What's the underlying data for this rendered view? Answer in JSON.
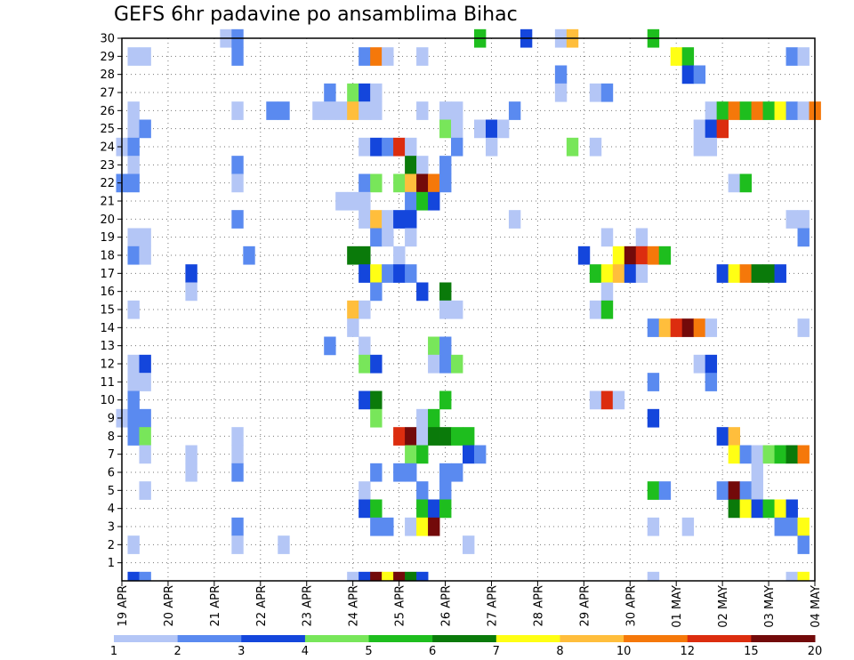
{
  "chart_data": {
    "type": "heatmap",
    "title": "GEFS 6hr padavine po ansamblima Bihac",
    "y_ticks": [
      "1",
      "2",
      "3",
      "4",
      "5",
      "6",
      "7",
      "8",
      "9",
      "10",
      "11",
      "12",
      "13",
      "14",
      "15",
      "16",
      "17",
      "18",
      "19",
      "20",
      "21",
      "22",
      "23",
      "24",
      "25",
      "26",
      "27",
      "28",
      "29",
      "30"
    ],
    "x_ticks": [
      "19 APR",
      "20 APR",
      "21 APR",
      "22 APR",
      "23 APR",
      "24 APR",
      "25 APR",
      "26 APR",
      "27 APR",
      "28 APR",
      "29 APR",
      "30 APR",
      "01 MAY",
      "02 MAY",
      "03 MAY",
      "04 MAY"
    ],
    "time_steps_per_day": 4,
    "n_steps": 61,
    "colorbar_labels": [
      "1",
      "2",
      "3",
      "4",
      "5",
      "6",
      "7",
      "8",
      "10",
      "12",
      "15",
      "20"
    ],
    "class_colors": [
      "#b4c6f6",
      "#5a8af0",
      "#1446dc",
      "#78e65a",
      "#1ebe1e",
      "#0a7a0a",
      "#ffff14",
      "#ffbe3c",
      "#f5780a",
      "#dc2d0f",
      "#730a0a"
    ],
    "grid": "dotted",
    "cells": [
      [
        30,
        9,
        0
      ],
      [
        30,
        10,
        1
      ],
      [
        30,
        31,
        4
      ],
      [
        30,
        35,
        2
      ],
      [
        30,
        38,
        0
      ],
      [
        30,
        39,
        7
      ],
      [
        30,
        46,
        4
      ],
      [
        29,
        1,
        0
      ],
      [
        29,
        2,
        0
      ],
      [
        29,
        10,
        1
      ],
      [
        29,
        21,
        1
      ],
      [
        29,
        22,
        8
      ],
      [
        29,
        23,
        0
      ],
      [
        29,
        26,
        0
      ],
      [
        29,
        48,
        6
      ],
      [
        29,
        49,
        4
      ],
      [
        29,
        58,
        1
      ],
      [
        29,
        59,
        0
      ],
      [
        28,
        38,
        1
      ],
      [
        28,
        49,
        2
      ],
      [
        28,
        50,
        1
      ],
      [
        27,
        18,
        1
      ],
      [
        27,
        20,
        3
      ],
      [
        27,
        21,
        2
      ],
      [
        27,
        22,
        0
      ],
      [
        27,
        38,
        0
      ],
      [
        27,
        41,
        0
      ],
      [
        27,
        42,
        1
      ],
      [
        26,
        1,
        0
      ],
      [
        26,
        10,
        0
      ],
      [
        26,
        13,
        1
      ],
      [
        26,
        14,
        1
      ],
      [
        26,
        17,
        0
      ],
      [
        26,
        18,
        0
      ],
      [
        26,
        19,
        0
      ],
      [
        26,
        20,
        7
      ],
      [
        26,
        21,
        0
      ],
      [
        26,
        22,
        0
      ],
      [
        26,
        26,
        0
      ],
      [
        26,
        28,
        0
      ],
      [
        26,
        29,
        0
      ],
      [
        26,
        34,
        1
      ],
      [
        26,
        51,
        0
      ],
      [
        26,
        52,
        4
      ],
      [
        26,
        53,
        8
      ],
      [
        26,
        54,
        4
      ],
      [
        26,
        55,
        8
      ],
      [
        26,
        56,
        4
      ],
      [
        26,
        57,
        6
      ],
      [
        26,
        58,
        1
      ],
      [
        26,
        59,
        0
      ],
      [
        26,
        60,
        8
      ],
      [
        25,
        1,
        0
      ],
      [
        25,
        2,
        1
      ],
      [
        25,
        28,
        3
      ],
      [
        25,
        29,
        0
      ],
      [
        25,
        31,
        0
      ],
      [
        25,
        32,
        2
      ],
      [
        25,
        33,
        0
      ],
      [
        25,
        50,
        0
      ],
      [
        25,
        51,
        2
      ],
      [
        25,
        52,
        9
      ],
      [
        24,
        0,
        0
      ],
      [
        24,
        1,
        1
      ],
      [
        24,
        21,
        0
      ],
      [
        24,
        22,
        2
      ],
      [
        24,
        23,
        1
      ],
      [
        24,
        24,
        9
      ],
      [
        24,
        25,
        0
      ],
      [
        24,
        29,
        1
      ],
      [
        24,
        32,
        0
      ],
      [
        24,
        39,
        3
      ],
      [
        24,
        41,
        0
      ],
      [
        24,
        50,
        0
      ],
      [
        24,
        51,
        0
      ],
      [
        23,
        1,
        0
      ],
      [
        23,
        10,
        1
      ],
      [
        23,
        25,
        5
      ],
      [
        23,
        26,
        0
      ],
      [
        23,
        28,
        1
      ],
      [
        22,
        0,
        1
      ],
      [
        22,
        1,
        1
      ],
      [
        22,
        10,
        0
      ],
      [
        22,
        21,
        1
      ],
      [
        22,
        22,
        3
      ],
      [
        22,
        24,
        3
      ],
      [
        22,
        25,
        7
      ],
      [
        22,
        26,
        10
      ],
      [
        22,
        27,
        8
      ],
      [
        22,
        28,
        1
      ],
      [
        22,
        53,
        0
      ],
      [
        22,
        54,
        4
      ],
      [
        21,
        19,
        0
      ],
      [
        21,
        20,
        0
      ],
      [
        21,
        21,
        0
      ],
      [
        21,
        25,
        1
      ],
      [
        21,
        26,
        4
      ],
      [
        21,
        27,
        2
      ],
      [
        20,
        10,
        1
      ],
      [
        20,
        21,
        0
      ],
      [
        20,
        22,
        7
      ],
      [
        20,
        23,
        0
      ],
      [
        20,
        24,
        2
      ],
      [
        20,
        25,
        2
      ],
      [
        20,
        34,
        0
      ],
      [
        20,
        58,
        0
      ],
      [
        20,
        59,
        0
      ],
      [
        19,
        1,
        0
      ],
      [
        19,
        2,
        0
      ],
      [
        19,
        22,
        1
      ],
      [
        19,
        23,
        0
      ],
      [
        19,
        25,
        0
      ],
      [
        19,
        42,
        0
      ],
      [
        19,
        45,
        0
      ],
      [
        19,
        59,
        1
      ],
      [
        18,
        1,
        1
      ],
      [
        18,
        2,
        0
      ],
      [
        18,
        11,
        1
      ],
      [
        18,
        20,
        5
      ],
      [
        18,
        21,
        5
      ],
      [
        18,
        24,
        0
      ],
      [
        18,
        40,
        2
      ],
      [
        18,
        43,
        6
      ],
      [
        18,
        44,
        10
      ],
      [
        18,
        45,
        9
      ],
      [
        18,
        46,
        8
      ],
      [
        18,
        47,
        4
      ],
      [
        17,
        6,
        2
      ],
      [
        17,
        21,
        2
      ],
      [
        17,
        22,
        6
      ],
      [
        17,
        23,
        1
      ],
      [
        17,
        24,
        2
      ],
      [
        17,
        25,
        1
      ],
      [
        17,
        41,
        4
      ],
      [
        17,
        42,
        6
      ],
      [
        17,
        43,
        7
      ],
      [
        17,
        44,
        2
      ],
      [
        17,
        45,
        0
      ],
      [
        17,
        52,
        2
      ],
      [
        17,
        53,
        6
      ],
      [
        17,
        54,
        8
      ],
      [
        17,
        55,
        5
      ],
      [
        17,
        56,
        5
      ],
      [
        17,
        57,
        2
      ],
      [
        16,
        6,
        0
      ],
      [
        16,
        22,
        1
      ],
      [
        16,
        26,
        2
      ],
      [
        16,
        28,
        5
      ],
      [
        16,
        42,
        0
      ],
      [
        15,
        1,
        0
      ],
      [
        15,
        20,
        7
      ],
      [
        15,
        21,
        0
      ],
      [
        15,
        28,
        0
      ],
      [
        15,
        29,
        0
      ],
      [
        15,
        41,
        0
      ],
      [
        15,
        42,
        4
      ],
      [
        14,
        20,
        0
      ],
      [
        14,
        46,
        1
      ],
      [
        14,
        47,
        7
      ],
      [
        14,
        48,
        9
      ],
      [
        14,
        49,
        10
      ],
      [
        14,
        50,
        8
      ],
      [
        14,
        51,
        0
      ],
      [
        14,
        59,
        0
      ],
      [
        13,
        18,
        1
      ],
      [
        13,
        21,
        0
      ],
      [
        13,
        27,
        3
      ],
      [
        13,
        28,
        1
      ],
      [
        12,
        1,
        0
      ],
      [
        12,
        2,
        2
      ],
      [
        12,
        21,
        3
      ],
      [
        12,
        22,
        2
      ],
      [
        12,
        27,
        0
      ],
      [
        12,
        28,
        1
      ],
      [
        12,
        29,
        3
      ],
      [
        12,
        50,
        0
      ],
      [
        12,
        51,
        2
      ],
      [
        11,
        1,
        0
      ],
      [
        11,
        2,
        0
      ],
      [
        11,
        46,
        1
      ],
      [
        11,
        51,
        1
      ],
      [
        10,
        1,
        1
      ],
      [
        10,
        21,
        2
      ],
      [
        10,
        22,
        5
      ],
      [
        10,
        28,
        4
      ],
      [
        10,
        41,
        0
      ],
      [
        10,
        42,
        9
      ],
      [
        10,
        43,
        0
      ],
      [
        9,
        0,
        0
      ],
      [
        9,
        1,
        1
      ],
      [
        9,
        2,
        1
      ],
      [
        9,
        22,
        3
      ],
      [
        9,
        26,
        0
      ],
      [
        9,
        27,
        4
      ],
      [
        9,
        46,
        2
      ],
      [
        8,
        1,
        1
      ],
      [
        8,
        2,
        3
      ],
      [
        8,
        10,
        0
      ],
      [
        8,
        24,
        9
      ],
      [
        8,
        25,
        10
      ],
      [
        8,
        26,
        0
      ],
      [
        8,
        27,
        5
      ],
      [
        8,
        28,
        5
      ],
      [
        8,
        29,
        4
      ],
      [
        8,
        30,
        4
      ],
      [
        8,
        52,
        2
      ],
      [
        8,
        53,
        7
      ],
      [
        7,
        2,
        0
      ],
      [
        7,
        6,
        0
      ],
      [
        7,
        10,
        0
      ],
      [
        7,
        25,
        3
      ],
      [
        7,
        26,
        4
      ],
      [
        7,
        30,
        2
      ],
      [
        7,
        31,
        1
      ],
      [
        7,
        53,
        6
      ],
      [
        7,
        54,
        1
      ],
      [
        7,
        55,
        0
      ],
      [
        7,
        56,
        3
      ],
      [
        7,
        57,
        4
      ],
      [
        7,
        58,
        5
      ],
      [
        7,
        59,
        8
      ],
      [
        6,
        6,
        0
      ],
      [
        6,
        10,
        1
      ],
      [
        6,
        22,
        1
      ],
      [
        6,
        24,
        1
      ],
      [
        6,
        25,
        1
      ],
      [
        6,
        28,
        1
      ],
      [
        6,
        29,
        1
      ],
      [
        6,
        55,
        0
      ],
      [
        5,
        2,
        0
      ],
      [
        5,
        21,
        0
      ],
      [
        5,
        26,
        1
      ],
      [
        5,
        28,
        1
      ],
      [
        5,
        46,
        4
      ],
      [
        5,
        47,
        1
      ],
      [
        5,
        52,
        1
      ],
      [
        5,
        53,
        10
      ],
      [
        5,
        54,
        1
      ],
      [
        5,
        55,
        0
      ],
      [
        4,
        21,
        2
      ],
      [
        4,
        22,
        4
      ],
      [
        4,
        26,
        4
      ],
      [
        4,
        27,
        2
      ],
      [
        4,
        28,
        4
      ],
      [
        4,
        53,
        5
      ],
      [
        4,
        54,
        6
      ],
      [
        4,
        55,
        2
      ],
      [
        4,
        56,
        4
      ],
      [
        4,
        57,
        6
      ],
      [
        4,
        58,
        2
      ],
      [
        3,
        10,
        1
      ],
      [
        3,
        22,
        1
      ],
      [
        3,
        23,
        1
      ],
      [
        3,
        25,
        0
      ],
      [
        3,
        26,
        6
      ],
      [
        3,
        27,
        10
      ],
      [
        3,
        46,
        0
      ],
      [
        3,
        49,
        0
      ],
      [
        3,
        57,
        1
      ],
      [
        3,
        58,
        1
      ],
      [
        3,
        59,
        6
      ],
      [
        2,
        1,
        0
      ],
      [
        2,
        10,
        0
      ],
      [
        2,
        14,
        0
      ],
      [
        2,
        30,
        0
      ],
      [
        2,
        59,
        1
      ]
    ],
    "bottom_strip": [
      [
        1,
        2
      ],
      [
        2,
        1
      ],
      [
        20,
        0
      ],
      [
        21,
        2
      ],
      [
        22,
        10
      ],
      [
        23,
        6
      ],
      [
        24,
        10
      ],
      [
        25,
        5
      ],
      [
        26,
        2
      ],
      [
        46,
        0
      ],
      [
        58,
        0
      ],
      [
        59,
        6
      ]
    ]
  }
}
